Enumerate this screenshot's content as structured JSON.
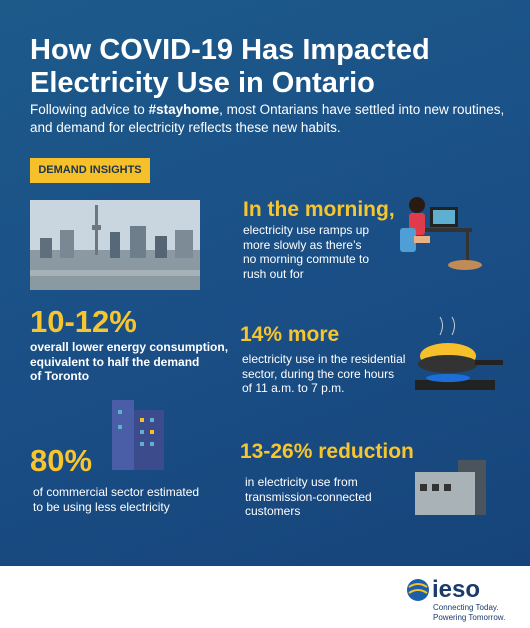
{
  "header": {
    "title_lines": [
      "How COVID-19 Has Impacted",
      "Electricity Use in Ontario"
    ],
    "subtitle": {
      "before": "Following advice to ",
      "bold": "#stayhome",
      "after": ", most Ontarians have settled into new routines, and demand for electricity reflects these new habits."
    },
    "badge": "DEMAND INSIGHTS"
  },
  "insights": [
    {
      "headline": "In the morning,",
      "body_lines": [
        "electricity use ramps up",
        "more slowly as there’s",
        "no morning commute to",
        "rush out for"
      ]
    },
    {
      "headline": "10-12%",
      "body_lines": [
        "overall lower energy consumption,",
        "equivalent to half the demand",
        "of Toronto"
      ]
    },
    {
      "headline": "14% more",
      "body_lines": [
        "electricity use in the residential",
        "sector, during the core hours",
        "of 11 a.m. to 7 p.m."
      ]
    },
    {
      "headline": "80%",
      "body_lines": [
        "of commercial sector estimated",
        "to be using less electricity"
      ]
    },
    {
      "headline": "13-26% reduction",
      "body_lines": [
        "in electricity use from",
        "transmission-connected",
        "customers"
      ]
    }
  ],
  "footer": {
    "logo": "ieso",
    "tagline_lines": [
      "Connecting Today.",
      "Powering Tomorrow."
    ]
  }
}
